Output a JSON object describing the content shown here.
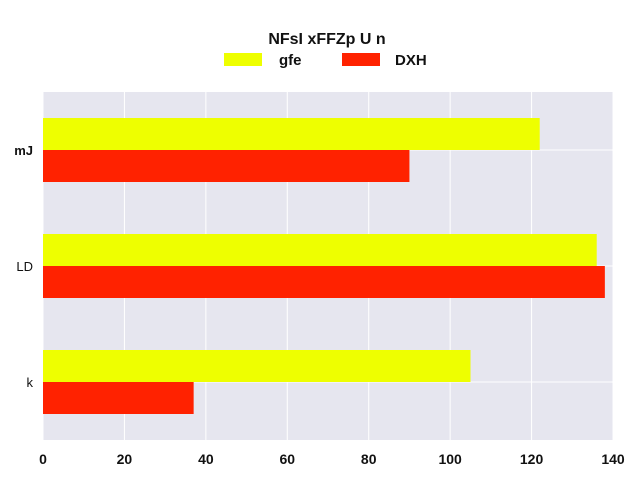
{
  "chart_data": {
    "type": "bar",
    "orientation": "horizontal",
    "title": "NFsI xFFZp U n",
    "xlabel": "",
    "ylabel": "",
    "categories": [
      "mJ",
      "LD",
      "k"
    ],
    "series": [
      {
        "name": "gfe",
        "color": "#eeff00",
        "values": [
          122,
          136,
          105
        ]
      },
      {
        "name": "DXH",
        "color": "#ff2200",
        "values": [
          90,
          138,
          37
        ]
      }
    ],
    "xlim": [
      0,
      140
    ],
    "xticks": [
      "0",
      "20",
      "40",
      "60",
      "80",
      "100",
      "120",
      "140"
    ],
    "grid": true,
    "legend_position": "top-center",
    "background_color": "#e6e6ef",
    "grid_color": "#ffffff"
  }
}
